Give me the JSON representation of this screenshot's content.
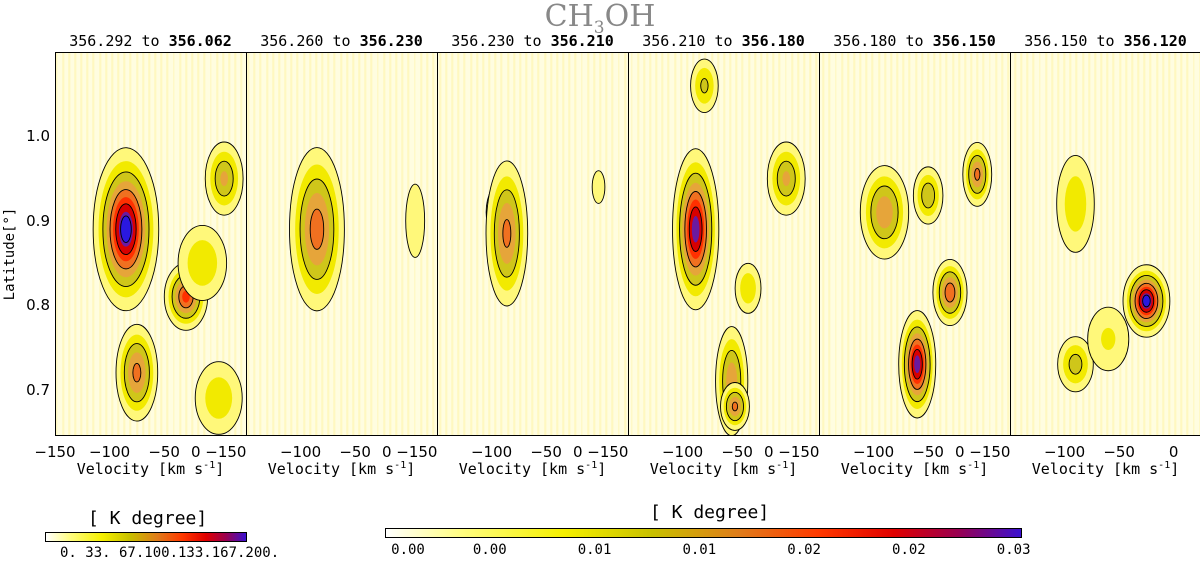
{
  "figure": {
    "title_main": "CH",
    "title_sub": "3",
    "title_tail": "OH"
  },
  "chart_data": {
    "type": "heatmap",
    "title": "CH3OH",
    "ylabel": "Latitude[°]",
    "xlabel_text": "Velocity [km s",
    "xlabel_exp": "-1",
    "xlabel_close": "]",
    "xlim": [
      -150,
      25
    ],
    "ylim": [
      0.645,
      1.1
    ],
    "xticks": [
      -150,
      -100,
      -50,
      0
    ],
    "xtick_labels": [
      "−150",
      "−100",
      "−50",
      "0"
    ],
    "yticks": [
      0.7,
      0.8,
      0.9,
      1.0
    ],
    "ytick_labels": [
      "0.7",
      "0.8",
      "0.9",
      "1.0"
    ],
    "panels": [
      {
        "from": "356.292",
        "to_word": "to",
        "to": "356.062",
        "sources": [
          {
            "v": -85,
            "b": 0.89,
            "sv": 14,
            "sb": 0.045,
            "peak": 1.0
          },
          {
            "v": -75,
            "b": 0.72,
            "sv": 10,
            "sb": 0.03,
            "peak": 0.62
          },
          {
            "v": -30,
            "b": 0.81,
            "sv": 10,
            "sb": 0.02,
            "peak": 0.72
          },
          {
            "v": 5,
            "b": 0.95,
            "sv": 10,
            "sb": 0.025,
            "peak": 0.45
          },
          {
            "v": -15,
            "b": 0.85,
            "sv": 15,
            "sb": 0.03,
            "peak": 0.3
          },
          {
            "v": 0,
            "b": 0.69,
            "sv": 15,
            "sb": 0.03,
            "peak": 0.28
          }
        ]
      },
      {
        "from": "356.260",
        "to_word": "to",
        "to": "356.230",
        "sources": [
          {
            "v": -85,
            "b": 0.89,
            "sv": 13,
            "sb": 0.05,
            "peak": 0.65
          },
          {
            "v": 5,
            "b": 0.9,
            "sv": 8,
            "sb": 0.04,
            "peak": 0.18
          }
        ]
      },
      {
        "from": "356.230",
        "to_word": "to",
        "to": "356.210",
        "sources": [
          {
            "v": -88,
            "b": 0.91,
            "sv": 8,
            "sb": 0.018,
            "peak": 0.95
          },
          {
            "v": -85,
            "b": 0.86,
            "sv": 8,
            "sb": 0.018,
            "peak": 0.92
          },
          {
            "v": -86,
            "b": 0.885,
            "sv": 10,
            "sb": 0.045,
            "peak": 0.62
          },
          {
            "v": -2,
            "b": 0.94,
            "sv": 6,
            "sb": 0.02,
            "peak": 0.16
          }
        ]
      },
      {
        "from": "356.210",
        "to_word": "to",
        "to": "356.180",
        "sources": [
          {
            "v": -88,
            "b": 0.89,
            "sv": 10,
            "sb": 0.045,
            "peak": 0.95
          },
          {
            "v": -80,
            "b": 1.06,
            "sv": 8,
            "sb": 0.02,
            "peak": 0.35
          },
          {
            "v": -55,
            "b": 0.71,
            "sv": 8,
            "sb": 0.035,
            "peak": 0.55
          },
          {
            "v": -52,
            "b": 0.68,
            "sv": 7,
            "sb": 0.015,
            "peak": 0.6
          },
          {
            "v": -5,
            "b": 0.95,
            "sv": 10,
            "sb": 0.025,
            "peak": 0.45
          },
          {
            "v": -40,
            "b": 0.82,
            "sv": 8,
            "sb": 0.02,
            "peak": 0.3
          }
        ]
      },
      {
        "from": "356.180",
        "to_word": "to",
        "to": "356.150",
        "sources": [
          {
            "v": -60,
            "b": 0.73,
            "sv": 8,
            "sb": 0.03,
            "peak": 0.95
          },
          {
            "v": -30,
            "b": 0.815,
            "sv": 8,
            "sb": 0.02,
            "peak": 0.68
          },
          {
            "v": -90,
            "b": 0.91,
            "sv": 12,
            "sb": 0.03,
            "peak": 0.55
          },
          {
            "v": -50,
            "b": 0.93,
            "sv": 8,
            "sb": 0.02,
            "peak": 0.42
          },
          {
            "v": -5,
            "b": 0.955,
            "sv": 7,
            "sb": 0.02,
            "peak": 0.6
          }
        ]
      },
      {
        "from": "356.150",
        "to_word": "to",
        "to": "356.120",
        "sources": [
          {
            "v": -25,
            "b": 0.805,
            "sv": 10,
            "sb": 0.02,
            "peak": 1.0
          },
          {
            "v": -90,
            "b": 0.92,
            "sv": 12,
            "sb": 0.04,
            "peak": 0.28
          },
          {
            "v": -90,
            "b": 0.73,
            "sv": 10,
            "sb": 0.02,
            "peak": 0.38
          },
          {
            "v": -60,
            "b": 0.76,
            "sv": 15,
            "sb": 0.03,
            "peak": 0.22
          }
        ]
      }
    ]
  },
  "colorbar_small": {
    "title": "[ K degree]",
    "ticks": "0.  33.  67.100.133.167.200."
  },
  "colorbar_large": {
    "title": "[ K degree]",
    "ticks": [
      "0.00",
      "0.00",
      "0.01",
      "0.01",
      "0.02",
      "0.02",
      "0.03"
    ]
  },
  "colors": {
    "background": "#fffde0",
    "contour": "#000000",
    "title": "#888888"
  }
}
